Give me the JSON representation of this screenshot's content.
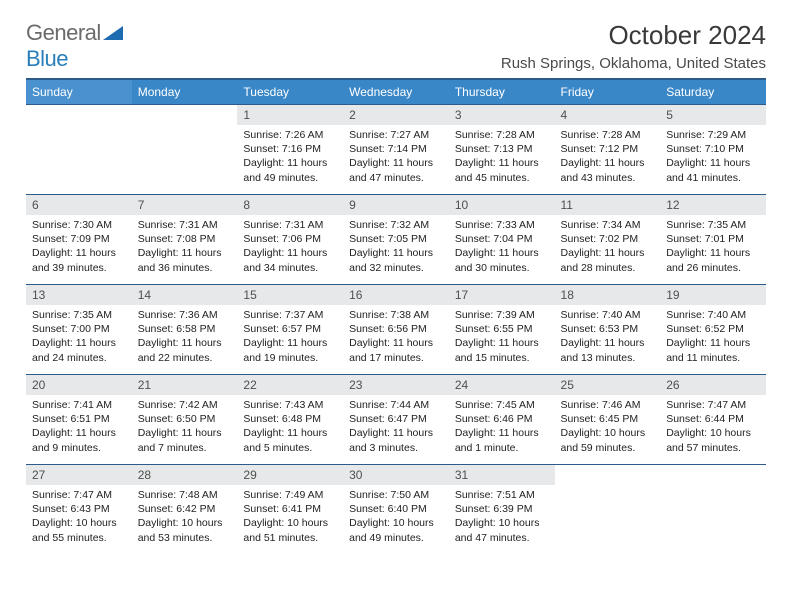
{
  "logo": {
    "text1": "General",
    "text2": "Blue",
    "colors": {
      "gray": "#6b6b6b",
      "blue": "#2a7fba",
      "triangle": "#1d6bb0"
    }
  },
  "title": "October 2024",
  "location": "Rush Springs, Oklahoma, United States",
  "style": {
    "header_bg": "#3a87c8",
    "header_border": "#2c5a8a",
    "daynum_bg": "#e7e8e9",
    "body_font_size": 10.5,
    "header_font_size": 12,
    "title_font_size": 26,
    "location_font_size": 15
  },
  "weekdays": [
    "Sunday",
    "Monday",
    "Tuesday",
    "Wednesday",
    "Thursday",
    "Friday",
    "Saturday"
  ],
  "weeks": [
    [
      null,
      null,
      {
        "n": "1",
        "sunrise": "7:26 AM",
        "sunset": "7:16 PM",
        "daylight": "11 hours and 49 minutes."
      },
      {
        "n": "2",
        "sunrise": "7:27 AM",
        "sunset": "7:14 PM",
        "daylight": "11 hours and 47 minutes."
      },
      {
        "n": "3",
        "sunrise": "7:28 AM",
        "sunset": "7:13 PM",
        "daylight": "11 hours and 45 minutes."
      },
      {
        "n": "4",
        "sunrise": "7:28 AM",
        "sunset": "7:12 PM",
        "daylight": "11 hours and 43 minutes."
      },
      {
        "n": "5",
        "sunrise": "7:29 AM",
        "sunset": "7:10 PM",
        "daylight": "11 hours and 41 minutes."
      }
    ],
    [
      {
        "n": "6",
        "sunrise": "7:30 AM",
        "sunset": "7:09 PM",
        "daylight": "11 hours and 39 minutes."
      },
      {
        "n": "7",
        "sunrise": "7:31 AM",
        "sunset": "7:08 PM",
        "daylight": "11 hours and 36 minutes."
      },
      {
        "n": "8",
        "sunrise": "7:31 AM",
        "sunset": "7:06 PM",
        "daylight": "11 hours and 34 minutes."
      },
      {
        "n": "9",
        "sunrise": "7:32 AM",
        "sunset": "7:05 PM",
        "daylight": "11 hours and 32 minutes."
      },
      {
        "n": "10",
        "sunrise": "7:33 AM",
        "sunset": "7:04 PM",
        "daylight": "11 hours and 30 minutes."
      },
      {
        "n": "11",
        "sunrise": "7:34 AM",
        "sunset": "7:02 PM",
        "daylight": "11 hours and 28 minutes."
      },
      {
        "n": "12",
        "sunrise": "7:35 AM",
        "sunset": "7:01 PM",
        "daylight": "11 hours and 26 minutes."
      }
    ],
    [
      {
        "n": "13",
        "sunrise": "7:35 AM",
        "sunset": "7:00 PM",
        "daylight": "11 hours and 24 minutes."
      },
      {
        "n": "14",
        "sunrise": "7:36 AM",
        "sunset": "6:58 PM",
        "daylight": "11 hours and 22 minutes."
      },
      {
        "n": "15",
        "sunrise": "7:37 AM",
        "sunset": "6:57 PM",
        "daylight": "11 hours and 19 minutes."
      },
      {
        "n": "16",
        "sunrise": "7:38 AM",
        "sunset": "6:56 PM",
        "daylight": "11 hours and 17 minutes."
      },
      {
        "n": "17",
        "sunrise": "7:39 AM",
        "sunset": "6:55 PM",
        "daylight": "11 hours and 15 minutes."
      },
      {
        "n": "18",
        "sunrise": "7:40 AM",
        "sunset": "6:53 PM",
        "daylight": "11 hours and 13 minutes."
      },
      {
        "n": "19",
        "sunrise": "7:40 AM",
        "sunset": "6:52 PM",
        "daylight": "11 hours and 11 minutes."
      }
    ],
    [
      {
        "n": "20",
        "sunrise": "7:41 AM",
        "sunset": "6:51 PM",
        "daylight": "11 hours and 9 minutes."
      },
      {
        "n": "21",
        "sunrise": "7:42 AM",
        "sunset": "6:50 PM",
        "daylight": "11 hours and 7 minutes."
      },
      {
        "n": "22",
        "sunrise": "7:43 AM",
        "sunset": "6:48 PM",
        "daylight": "11 hours and 5 minutes."
      },
      {
        "n": "23",
        "sunrise": "7:44 AM",
        "sunset": "6:47 PM",
        "daylight": "11 hours and 3 minutes."
      },
      {
        "n": "24",
        "sunrise": "7:45 AM",
        "sunset": "6:46 PM",
        "daylight": "11 hours and 1 minute."
      },
      {
        "n": "25",
        "sunrise": "7:46 AM",
        "sunset": "6:45 PM",
        "daylight": "10 hours and 59 minutes."
      },
      {
        "n": "26",
        "sunrise": "7:47 AM",
        "sunset": "6:44 PM",
        "daylight": "10 hours and 57 minutes."
      }
    ],
    [
      {
        "n": "27",
        "sunrise": "7:47 AM",
        "sunset": "6:43 PM",
        "daylight": "10 hours and 55 minutes."
      },
      {
        "n": "28",
        "sunrise": "7:48 AM",
        "sunset": "6:42 PM",
        "daylight": "10 hours and 53 minutes."
      },
      {
        "n": "29",
        "sunrise": "7:49 AM",
        "sunset": "6:41 PM",
        "daylight": "10 hours and 51 minutes."
      },
      {
        "n": "30",
        "sunrise": "7:50 AM",
        "sunset": "6:40 PM",
        "daylight": "10 hours and 49 minutes."
      },
      {
        "n": "31",
        "sunrise": "7:51 AM",
        "sunset": "6:39 PM",
        "daylight": "10 hours and 47 minutes."
      },
      null,
      null
    ]
  ],
  "labels": {
    "sunrise": "Sunrise:",
    "sunset": "Sunset:",
    "daylight": "Daylight:"
  }
}
